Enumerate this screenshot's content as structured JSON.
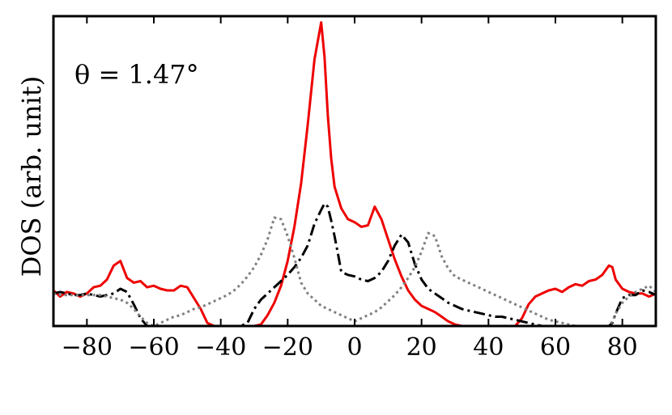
{
  "chart_data": {
    "type": "line",
    "title": "",
    "xlabel": "",
    "ylabel": "DOS (arb. unit)",
    "annotation": "θ = 1.47°",
    "xlim": [
      -90,
      90
    ],
    "ylim": [
      0,
      10
    ],
    "xticks": [
      -80,
      -60,
      -40,
      -20,
      0,
      20,
      40,
      60,
      80
    ],
    "xtick_labels": [
      "−80",
      "−60",
      "−40",
      "−20",
      "0",
      "20",
      "40",
      "60",
      "80"
    ],
    "yticks_shown": false,
    "grid": false,
    "legend": "none",
    "series": [
      {
        "color": "#ee0000",
        "style": "solid",
        "x": [
          -90,
          -88,
          -86,
          -84,
          -82,
          -80,
          -78,
          -76,
          -74,
          -72,
          -70,
          -68,
          -66,
          -64,
          -62,
          -60,
          -58,
          -56,
          -54,
          -52,
          -50,
          -48,
          -46,
          -44,
          -42,
          -40,
          -38,
          -36,
          -34,
          -32,
          -30,
          -28,
          -26,
          -24,
          -22,
          -20,
          -18,
          -16,
          -14,
          -12,
          -10,
          -9,
          -8,
          -7,
          -6,
          -5,
          -4,
          -2,
          0,
          2,
          4,
          6,
          8,
          10,
          12,
          14,
          16,
          18,
          20,
          22,
          24,
          26,
          28,
          30,
          32,
          34,
          36,
          38,
          40,
          42,
          44,
          46,
          48,
          50,
          52,
          54,
          56,
          58,
          60,
          62,
          64,
          66,
          68,
          70,
          72,
          74,
          76,
          77,
          78,
          80,
          82,
          84,
          86,
          88,
          90
        ],
        "y": [
          1.15,
          0.95,
          1.1,
          1.05,
          0.95,
          1.05,
          1.25,
          1.3,
          1.5,
          1.95,
          2.1,
          1.55,
          1.4,
          1.45,
          1.25,
          1.3,
          1.2,
          1.15,
          1.15,
          1.3,
          1.25,
          0.9,
          0.55,
          0.1,
          0,
          0,
          0,
          0,
          0,
          0,
          0,
          0.05,
          0.35,
          0.75,
          1.3,
          2.1,
          3.2,
          4.6,
          6.5,
          8.6,
          9.8,
          8.7,
          6.8,
          5.4,
          4.5,
          4.15,
          3.8,
          3.45,
          3.35,
          3.2,
          3.25,
          3.85,
          3.45,
          2.8,
          2.15,
          1.6,
          1.15,
          0.85,
          0.65,
          0.55,
          0.45,
          0.3,
          0.15,
          0.05,
          0,
          0,
          0,
          0,
          0,
          0,
          0,
          0,
          0,
          0.25,
          0.7,
          0.95,
          1.05,
          1.15,
          1.2,
          1.1,
          1.25,
          1.35,
          1.3,
          1.45,
          1.5,
          1.65,
          1.95,
          1.9,
          1.5,
          1.2,
          1.1,
          1.05,
          1.05,
          0.95,
          1.05
        ]
      },
      {
        "color": "#000000",
        "style": "dashdot",
        "x": [
          -90,
          -88,
          -86,
          -84,
          -82,
          -80,
          -78,
          -76,
          -74,
          -72,
          -70,
          -68,
          -66,
          -64,
          -62,
          -60,
          -58,
          -56,
          -54,
          -52,
          -50,
          -48,
          -46,
          -44,
          -42,
          -40,
          -38,
          -36,
          -34,
          -32,
          -30,
          -28,
          -26,
          -24,
          -22,
          -20,
          -18,
          -16,
          -14,
          -12,
          -10,
          -9,
          -8,
          -7,
          -6,
          -5,
          -4,
          -2,
          0,
          2,
          4,
          6,
          8,
          10,
          12,
          14,
          16,
          18,
          20,
          22,
          24,
          26,
          28,
          30,
          32,
          34,
          36,
          38,
          40,
          42,
          44,
          46,
          48,
          50,
          52,
          54,
          56,
          58,
          60,
          62,
          64,
          66,
          68,
          70,
          72,
          74,
          76,
          77,
          78,
          80,
          82,
          84,
          86,
          88,
          90
        ],
        "y": [
          1.05,
          1.1,
          1.05,
          1.0,
          1.0,
          1.05,
          1.0,
          0.95,
          1.0,
          1.05,
          1.2,
          1.1,
          0.7,
          0.25,
          0,
          0,
          0,
          0,
          0,
          0,
          0,
          0,
          0,
          0,
          0,
          0,
          0,
          0,
          0,
          0.1,
          0.55,
          0.85,
          1.05,
          1.25,
          1.45,
          1.65,
          1.9,
          2.2,
          2.6,
          3.3,
          3.75,
          3.95,
          3.85,
          3.4,
          2.9,
          2.35,
          1.75,
          1.65,
          1.6,
          1.5,
          1.45,
          1.55,
          1.75,
          2.1,
          2.6,
          2.95,
          2.7,
          2.0,
          1.5,
          1.2,
          1.05,
          0.9,
          0.75,
          0.65,
          0.55,
          0.5,
          0.45,
          0.4,
          0.35,
          0.3,
          0.3,
          0.25,
          0.2,
          0.15,
          0.1,
          0.05,
          0,
          0,
          0,
          0,
          0,
          0,
          0,
          0,
          0,
          0,
          0,
          0.1,
          0.4,
          0.9,
          1.0,
          1.0,
          1.15,
          1.1,
          1.0
        ]
      },
      {
        "color": "#808080",
        "style": "dotted",
        "x": [
          -90,
          -88,
          -86,
          -84,
          -82,
          -80,
          -78,
          -76,
          -74,
          -72,
          -70,
          -68,
          -66,
          -64,
          -62,
          -60,
          -58,
          -56,
          -54,
          -52,
          -50,
          -48,
          -46,
          -44,
          -42,
          -40,
          -38,
          -36,
          -34,
          -32,
          -30,
          -28,
          -26,
          -24,
          -22,
          -20,
          -18,
          -16,
          -14,
          -12,
          -10,
          -9,
          -8,
          -7,
          -6,
          -5,
          -4,
          -2,
          0,
          2,
          4,
          6,
          8,
          10,
          12,
          14,
          16,
          18,
          20,
          22,
          24,
          26,
          28,
          30,
          32,
          34,
          36,
          38,
          40,
          42,
          44,
          46,
          48,
          50,
          52,
          54,
          56,
          58,
          60,
          62,
          64,
          66,
          68,
          70,
          72,
          74,
          76,
          77,
          78,
          80,
          82,
          84,
          86,
          88,
          90
        ],
        "y": [
          1.05,
          1.0,
          1.0,
          1.0,
          1.0,
          1.0,
          1.0,
          1.0,
          0.95,
          0.9,
          0.85,
          0.75,
          0.55,
          0.3,
          0.1,
          0,
          0.1,
          0.2,
          0.3,
          0.35,
          0.45,
          0.55,
          0.6,
          0.7,
          0.8,
          0.9,
          1.0,
          1.15,
          1.35,
          1.6,
          1.9,
          2.3,
          2.8,
          3.5,
          3.45,
          2.9,
          2.2,
          1.4,
          1.05,
          0.85,
          0.65,
          0.6,
          0.55,
          0.5,
          0.45,
          0.4,
          0.35,
          0.25,
          0.15,
          0.25,
          0.35,
          0.45,
          0.6,
          0.8,
          1.0,
          1.25,
          1.55,
          1.9,
          2.4,
          3.0,
          2.9,
          2.25,
          1.85,
          1.6,
          1.5,
          1.4,
          1.3,
          1.2,
          1.1,
          1.0,
          0.9,
          0.8,
          0.7,
          0.6,
          0.5,
          0.4,
          0.3,
          0.2,
          0.15,
          0.1,
          0.05,
          0,
          0,
          0,
          0,
          0,
          0,
          0.15,
          0.4,
          0.75,
          0.95,
          1.1,
          1.2,
          1.3,
          1.1
        ]
      }
    ]
  }
}
